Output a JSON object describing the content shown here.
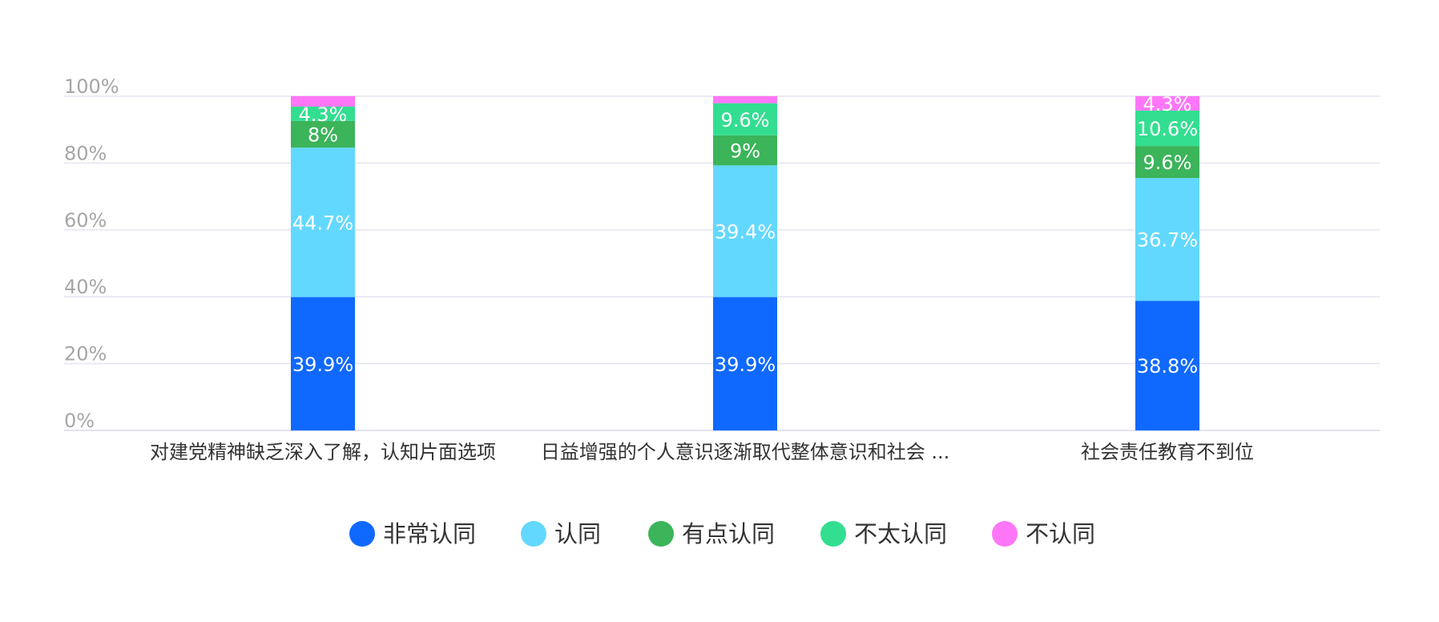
{
  "chart_data": {
    "type": "bar",
    "stacked": true,
    "percent_axis": true,
    "categories": [
      "对建党精神缺乏深入了解，认知片面选项",
      "日益增强的个人意识逐渐取代整体意识和社会 ...",
      "社会责任教育不到位"
    ],
    "series": [
      {
        "name": "非常认同",
        "color": "#1069ff",
        "values": [
          39.9,
          39.9,
          38.8
        ],
        "labels": [
          "39.9%",
          "39.9%",
          "38.8%"
        ]
      },
      {
        "name": "认同",
        "color": "#63d8ff",
        "values": [
          44.7,
          39.4,
          36.7
        ],
        "labels": [
          "44.7%",
          "39.4%",
          "36.7%"
        ]
      },
      {
        "name": "有点认同",
        "color": "#3bb45a",
        "values": [
          8,
          9,
          9.6
        ],
        "labels": [
          "8%",
          "9%",
          "9.6%"
        ]
      },
      {
        "name": "不太认同",
        "color": "#33de90",
        "values": [
          4.3,
          9.6,
          10.6
        ],
        "labels": [
          "4.3%",
          "9.6%",
          "10.6%"
        ]
      },
      {
        "name": "不认同",
        "color": "#ff77f8",
        "values": [
          3.1,
          2.1,
          4.3
        ],
        "labels": [
          "",
          "",
          "4.3%"
        ]
      }
    ],
    "y_ticks": [
      "0%",
      "20%",
      "40%",
      "60%",
      "80%",
      "100%"
    ],
    "ylim": [
      0,
      100
    ],
    "grid": true,
    "legend_position": "bottom",
    "gridline_color": "#e3e4f0",
    "axis_color": "#e3e4f0"
  }
}
